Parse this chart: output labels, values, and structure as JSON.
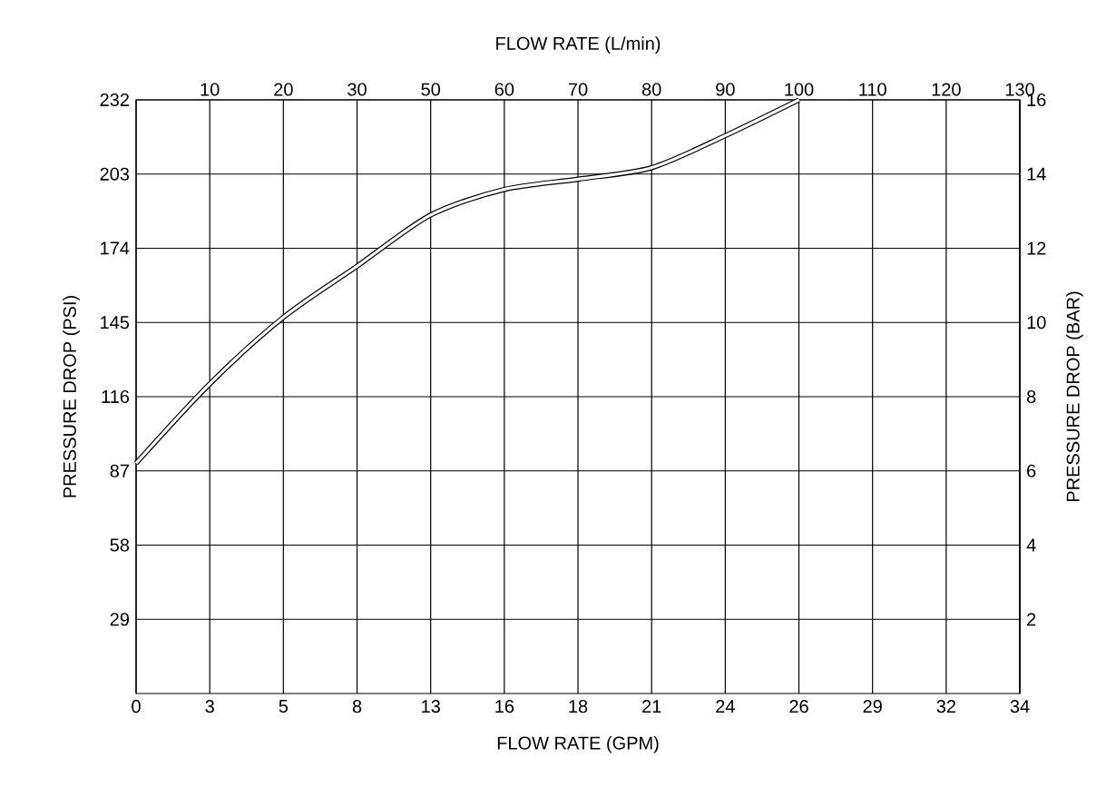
{
  "chart_data": {
    "type": "line",
    "xlabel": "FLOW RATE (GPM)",
    "x2label": "FLOW RATE (L/min)",
    "ylabel": "PRESSURE DROP (PSI)",
    "y2label": "PRESSURE DROP (BAR)",
    "categories": [
      "0",
      "3",
      "5",
      "8",
      "13",
      "16",
      "18",
      "21",
      "24",
      "26",
      "29",
      "32",
      "34"
    ],
    "annotations": [
      "10",
      "20",
      "30",
      "50",
      "60",
      "70",
      "80",
      "90",
      "100",
      "110",
      "120",
      "130"
    ],
    "ylim": [
      0,
      232
    ],
    "yticks": [
      29,
      58,
      87,
      116,
      145,
      174,
      203,
      232
    ],
    "y2lim": [
      0,
      16
    ],
    "y2ticks": [
      2,
      4,
      6,
      8,
      10,
      12,
      14,
      16
    ],
    "grid": true,
    "marker": "none",
    "line_style": "solid",
    "series": [
      {
        "color": "#000000",
        "values": [
          90,
          121,
          147,
          167,
          187,
          197,
          201,
          205.5,
          218,
          232,
          null,
          null,
          null
        ]
      }
    ]
  }
}
